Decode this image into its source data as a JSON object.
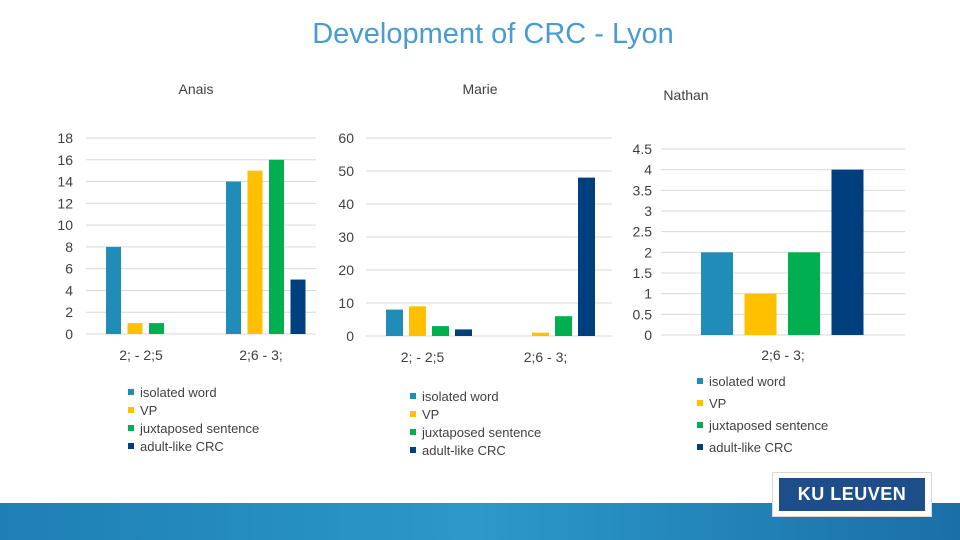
{
  "slide": {
    "title": "Development of CRC - Lyon"
  },
  "colors": {
    "isolated_word": "#1f8db8",
    "vp": "#ffc000",
    "juxtaposed_sentence": "#00b050",
    "adult_like_crc": "#003f7d",
    "axis_text": "#404040",
    "grid": "#d9d9d9"
  },
  "chart_data": [
    {
      "id": "anais",
      "type": "bar",
      "title": "Anais",
      "categories": [
        "2; - 2;5",
        "2;6 - 3;"
      ],
      "series": [
        {
          "name": "isolated word",
          "values": [
            8,
            14
          ]
        },
        {
          "name": "VP",
          "values": [
            1,
            15
          ]
        },
        {
          "name": "juxtaposed sentence",
          "values": [
            1,
            16
          ]
        },
        {
          "name": "adult-like CRC",
          "values": [
            0,
            5
          ]
        }
      ],
      "ylim": [
        0,
        18
      ],
      "yticks": [
        "0",
        "2",
        "4",
        "6",
        "8",
        "10",
        "12",
        "14",
        "16",
        "18"
      ],
      "legend": "bottom"
    },
    {
      "id": "marie",
      "type": "bar",
      "title": "Marie",
      "categories": [
        "2; - 2;5",
        "2;6 - 3;"
      ],
      "series": [
        {
          "name": "isolated word",
          "values": [
            8,
            0
          ]
        },
        {
          "name": "VP",
          "values": [
            9,
            1
          ]
        },
        {
          "name": "juxtaposed sentence",
          "values": [
            3,
            6
          ]
        },
        {
          "name": "adult-like CRC",
          "values": [
            2,
            48
          ]
        }
      ],
      "ylim": [
        0,
        60
      ],
      "yticks": [
        "0",
        "10",
        "20",
        "30",
        "40",
        "50",
        "60"
      ],
      "legend": "bottom"
    },
    {
      "id": "nathan",
      "type": "bar",
      "title": "Nathan",
      "categories": [
        "2;6 - 3;"
      ],
      "series": [
        {
          "name": "isolated word",
          "values": [
            2
          ]
        },
        {
          "name": "VP",
          "values": [
            1
          ]
        },
        {
          "name": "juxtaposed sentence",
          "values": [
            2
          ]
        },
        {
          "name": "adult-like CRC",
          "values": [
            4
          ]
        }
      ],
      "ylim": [
        0,
        4.5
      ],
      "yticks": [
        "0",
        "0.5",
        "1",
        "1.5",
        "2",
        "2.5",
        "3",
        "3.5",
        "4",
        "4.5"
      ],
      "legend": "bottom"
    }
  ],
  "logo": {
    "text": "KU LEUVEN"
  }
}
